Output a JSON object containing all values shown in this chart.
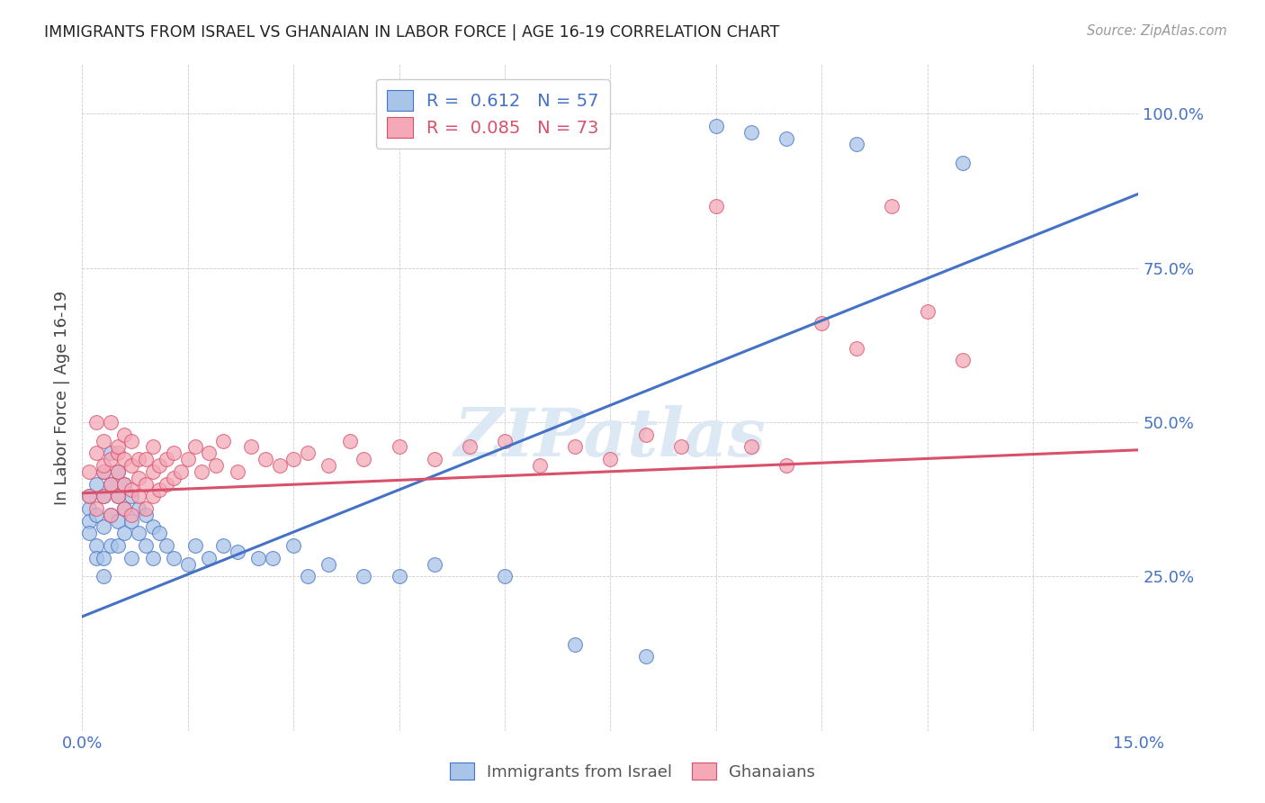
{
  "title": "IMMIGRANTS FROM ISRAEL VS GHANAIAN IN LABOR FORCE | AGE 16-19 CORRELATION CHART",
  "source": "Source: ZipAtlas.com",
  "ylabel": "In Labor Force | Age 16-19",
  "xmin": 0.0,
  "xmax": 0.15,
  "ymin": 0.0,
  "ymax": 1.08,
  "yticks": [
    0.25,
    0.5,
    0.75,
    1.0
  ],
  "ytick_labels": [
    "25.0%",
    "50.0%",
    "75.0%",
    "100.0%"
  ],
  "color_israel": "#a8c4e8",
  "color_ghana": "#f4a8b8",
  "trendline_israel_color": "#4472c4",
  "trendline_ghana_color": "#d9506a",
  "israel_trendline_x0": 0.0,
  "israel_trendline_y0": 0.185,
  "israel_trendline_x1": 0.15,
  "israel_trendline_y1": 0.87,
  "ghana_trendline_x0": 0.0,
  "ghana_trendline_y0": 0.385,
  "ghana_trendline_x1": 0.15,
  "ghana_trendline_y1": 0.455,
  "background_color": "#ffffff",
  "grid_color": "#cccccc",
  "israel_x": [
    0.001,
    0.001,
    0.001,
    0.001,
    0.002,
    0.002,
    0.002,
    0.002,
    0.003,
    0.003,
    0.003,
    0.003,
    0.003,
    0.004,
    0.004,
    0.004,
    0.004,
    0.005,
    0.005,
    0.005,
    0.005,
    0.006,
    0.006,
    0.006,
    0.007,
    0.007,
    0.007,
    0.008,
    0.008,
    0.009,
    0.009,
    0.01,
    0.01,
    0.011,
    0.012,
    0.013,
    0.015,
    0.016,
    0.018,
    0.02,
    0.022,
    0.025,
    0.027,
    0.03,
    0.032,
    0.035,
    0.04,
    0.045,
    0.05,
    0.06,
    0.07,
    0.08,
    0.09,
    0.095,
    0.1,
    0.11,
    0.125
  ],
  "israel_y": [
    0.38,
    0.36,
    0.34,
    0.32,
    0.4,
    0.35,
    0.3,
    0.28,
    0.42,
    0.38,
    0.33,
    0.28,
    0.25,
    0.45,
    0.4,
    0.35,
    0.3,
    0.42,
    0.38,
    0.34,
    0.3,
    0.4,
    0.36,
    0.32,
    0.38,
    0.34,
    0.28,
    0.36,
    0.32,
    0.35,
    0.3,
    0.33,
    0.28,
    0.32,
    0.3,
    0.28,
    0.27,
    0.3,
    0.28,
    0.3,
    0.29,
    0.28,
    0.28,
    0.3,
    0.25,
    0.27,
    0.25,
    0.25,
    0.27,
    0.25,
    0.14,
    0.12,
    0.98,
    0.97,
    0.96,
    0.95,
    0.92
  ],
  "ghana_x": [
    0.001,
    0.001,
    0.002,
    0.002,
    0.002,
    0.003,
    0.003,
    0.003,
    0.003,
    0.004,
    0.004,
    0.004,
    0.004,
    0.005,
    0.005,
    0.005,
    0.005,
    0.006,
    0.006,
    0.006,
    0.006,
    0.007,
    0.007,
    0.007,
    0.007,
    0.008,
    0.008,
    0.008,
    0.009,
    0.009,
    0.009,
    0.01,
    0.01,
    0.01,
    0.011,
    0.011,
    0.012,
    0.012,
    0.013,
    0.013,
    0.014,
    0.015,
    0.016,
    0.017,
    0.018,
    0.019,
    0.02,
    0.022,
    0.024,
    0.026,
    0.028,
    0.03,
    0.032,
    0.035,
    0.038,
    0.04,
    0.045,
    0.05,
    0.055,
    0.06,
    0.065,
    0.07,
    0.075,
    0.08,
    0.085,
    0.09,
    0.095,
    0.1,
    0.105,
    0.11,
    0.115,
    0.12,
    0.125
  ],
  "ghana_y": [
    0.38,
    0.42,
    0.45,
    0.5,
    0.36,
    0.42,
    0.47,
    0.38,
    0.43,
    0.44,
    0.5,
    0.4,
    0.35,
    0.45,
    0.42,
    0.38,
    0.46,
    0.44,
    0.4,
    0.36,
    0.48,
    0.43,
    0.39,
    0.35,
    0.47,
    0.41,
    0.38,
    0.44,
    0.4,
    0.36,
    0.44,
    0.42,
    0.38,
    0.46,
    0.43,
    0.39,
    0.44,
    0.4,
    0.45,
    0.41,
    0.42,
    0.44,
    0.46,
    0.42,
    0.45,
    0.43,
    0.47,
    0.42,
    0.46,
    0.44,
    0.43,
    0.44,
    0.45,
    0.43,
    0.47,
    0.44,
    0.46,
    0.44,
    0.46,
    0.47,
    0.43,
    0.46,
    0.44,
    0.48,
    0.46,
    0.85,
    0.46,
    0.43,
    0.66,
    0.62,
    0.85,
    0.68,
    0.6
  ],
  "watermark_text": "ZIPatlas",
  "watermark_fontsize": 54,
  "watermark_color": "#dde8f5",
  "legend_israel_label": "R =  0.612   N = 57",
  "legend_ghana_label": "R =  0.085   N = 73",
  "bottom_legend_israel": "Immigrants from Israel",
  "bottom_legend_ghana": "Ghanaians"
}
